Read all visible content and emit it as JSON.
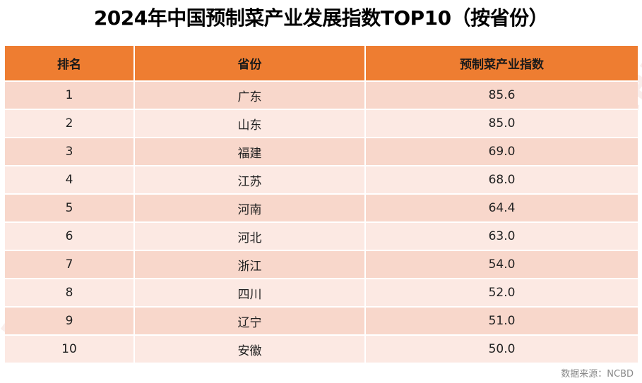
{
  "title": "2024年中国预制菜产业发展指数TOP10（按省份）",
  "table": {
    "headers": [
      "排名",
      "省份",
      "预制菜产业指数"
    ],
    "rows": [
      [
        "1",
        "广东",
        "85.6"
      ],
      [
        "2",
        "山东",
        "85.0"
      ],
      [
        "3",
        "福建",
        "69.0"
      ],
      [
        "4",
        "江苏",
        "68.0"
      ],
      [
        "5",
        "河南",
        "64.4"
      ],
      [
        "6",
        "河北",
        "63.0"
      ],
      [
        "7",
        "浙江",
        "54.0"
      ],
      [
        "8",
        "四川",
        "52.0"
      ],
      [
        "9",
        "辽宁",
        "51.0"
      ],
      [
        "10",
        "安徽",
        "50.0"
      ]
    ]
  },
  "source": "数据来源：NCBD",
  "watermark": "NCBD",
  "colors": {
    "header_bg": "#ee7d31",
    "row_odd": "#f8d7cb",
    "row_even": "#fce9e3"
  }
}
